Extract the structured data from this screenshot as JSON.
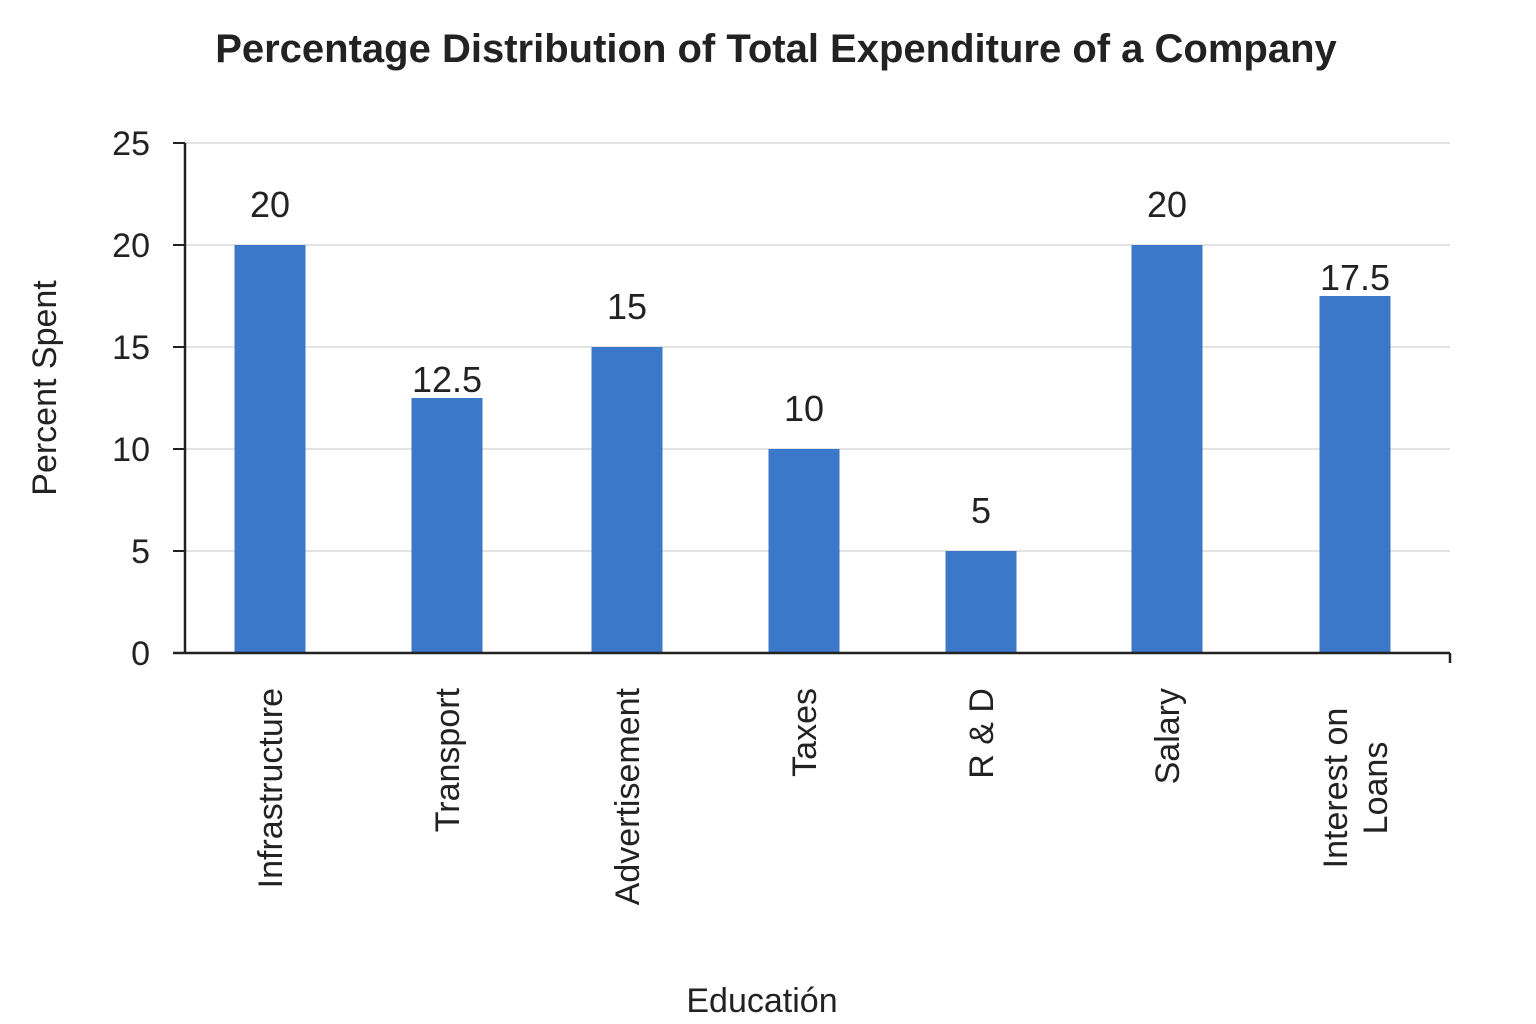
{
  "chart_data": {
    "type": "bar",
    "title": "Percentage Distribution of Total Expenditure of a Company",
    "xlabel": "Educatión",
    "ylabel": "Percent Spent",
    "categories": [
      "Infrastructure",
      "Transport",
      "Advertisement",
      "Taxes",
      "R & D",
      "Salary",
      "Interest on Loans"
    ],
    "category_lines": [
      [
        "Infrastructure"
      ],
      [
        "Transport"
      ],
      [
        "Advertisement"
      ],
      [
        "Taxes"
      ],
      [
        "R & D"
      ],
      [
        "Salary"
      ],
      [
        "Interest on",
        "Loans"
      ]
    ],
    "values": [
      20,
      12.5,
      15,
      10,
      5,
      20,
      17.5
    ],
    "data_labels": [
      "20",
      "12.5",
      "15",
      "10",
      "5",
      "20",
      "17.5"
    ],
    "ylim": [
      0,
      25
    ],
    "yticks": [
      0,
      5,
      10,
      15,
      20,
      25
    ],
    "grid": true,
    "legend": "none",
    "bar_color": "#3b78c9",
    "grid_color": "#e3e3e3",
    "axis_color": "#222222"
  }
}
